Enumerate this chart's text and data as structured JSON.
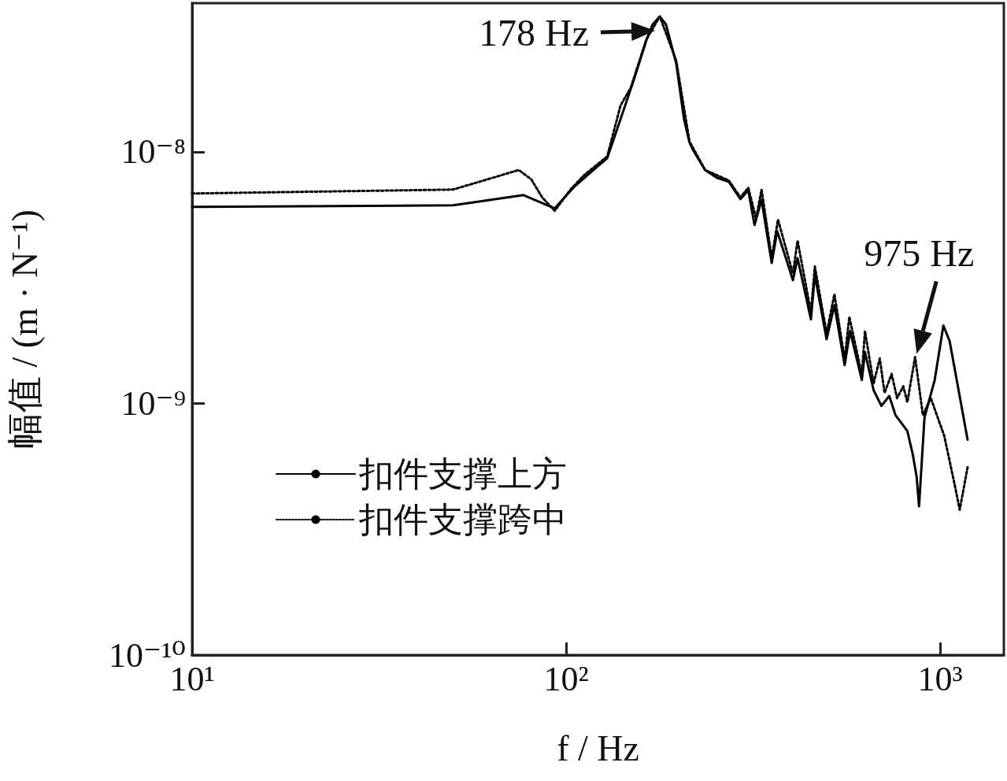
{
  "chart_data": {
    "type": "line",
    "xlabel": "f / Hz",
    "ylabel": "幅值 / (m · N⁻¹)",
    "log": "xy",
    "xlim": [
      10,
      1480
    ],
    "ylim": [
      1e-10,
      3.9e-08
    ],
    "xticks": [
      {
        "value": 10,
        "label": "10¹"
      },
      {
        "value": 100,
        "label": "10²"
      },
      {
        "value": 1000,
        "label": "10³"
      }
    ],
    "yticks": [
      {
        "value": 1e-10,
        "label": "10⁻¹⁰"
      },
      {
        "value": 1e-09,
        "label": "10⁻⁹"
      },
      {
        "value": 1e-08,
        "label": "10⁻⁸"
      }
    ],
    "grid": false,
    "legend": "bottom left",
    "marker": "none",
    "annotations": [
      {
        "text": "178 Hz",
        "x": 178,
        "y": 3.45e-08
      },
      {
        "text": "975 Hz",
        "x": 857,
        "y": 1.53e-09
      }
    ],
    "series": [
      {
        "name": "扣件支撑上方",
        "color": "#000000",
        "line_style": "solid",
        "x": [
          10,
          49.8,
          76.9,
          93.2,
          104.7,
          117,
          128.8,
          139.8,
          152.5,
          163.9,
          170.3,
          178,
          184.9,
          197,
          206.6,
          213.7,
          219,
          235.3,
          253,
          272,
          292.4,
          306.9,
          318.9,
          333,
          354.5,
          366.7,
          403.9,
          415.7,
          451.3,
          462.3,
          497,
          521.5,
          555.4,
          574.3,
          617.4,
          629.4,
          663.7,
          696.5,
          731,
          759.7,
          817,
          845,
          865,
          878,
          908,
          967,
          1020,
          1060,
          1184
        ],
        "values": [
          6.04e-09,
          6.13e-09,
          6.73e-09,
          5.96e-09,
          7.23e-09,
          8.35e-09,
          9.44e-09,
          1.35e-08,
          1.98e-08,
          2.78e-08,
          3.21e-08,
          3.45e-08,
          3.21e-08,
          2.24e-08,
          1.35e-08,
          1.09e-08,
          1.01e-08,
          8.47e-09,
          7.89e-09,
          7.61e-09,
          6.49e-09,
          7.03e-09,
          5.12e-09,
          6.45e-09,
          3.62e-09,
          4.84e-09,
          3.09e-09,
          3.78e-09,
          2.16e-09,
          3.25e-09,
          1.8e-09,
          2.46e-09,
          1.42e-09,
          1.94e-09,
          1.24e-09,
          1.6e-09,
          1.13e-09,
          9.78e-10,
          1.07e-09,
          8.98e-10,
          7.77e-10,
          6.26e-10,
          5.12e-10,
          3.9e-10,
          8.79e-10,
          1.24e-09,
          2.04e-09,
          1.77e-09,
          7.18e-10
        ]
      },
      {
        "name": "扣件支撑跨中",
        "color": "#000000",
        "line_style": "dotted",
        "x": [
          10,
          49.8,
          58.7,
          74.7,
          80.7,
          86.3,
          93.2,
          102.7,
          111.5,
          128.8,
          139.8,
          148.9,
          163.9,
          178,
          197,
          213.7,
          235.3,
          272,
          292.4,
          306.9,
          322,
          333,
          354.5,
          368.5,
          403.9,
          415.7,
          451.3,
          462.3,
          497,
          521.5,
          555.4,
          571.6,
          617.4,
          629.4,
          663.7,
          689.7,
          710,
          741.6,
          767,
          797,
          817,
          857,
          899,
          944,
          1025,
          1091,
          1128,
          1184
        ],
        "values": [
          6.83e-09,
          7.08e-09,
          7.61e-09,
          8.47e-09,
          7.77e-09,
          6.59e-09,
          5.83e-09,
          7.08e-09,
          8.06e-09,
          9.6e-09,
          1.53e-08,
          1.8e-08,
          2.8e-08,
          3.45e-08,
          2.3e-08,
          1.1e-08,
          8.47e-09,
          7.7e-09,
          6.6e-09,
          7.2e-09,
          5.43e-09,
          7.08e-09,
          3.78e-09,
          5.38e-09,
          3.28e-09,
          4.44e-09,
          2.3e-09,
          3.5e-09,
          1.9e-09,
          2.72e-09,
          1.5e-09,
          2.21e-09,
          1.3e-09,
          1.94e-09,
          1.2e-09,
          1.51e-09,
          1.1e-09,
          1.31e-09,
          1.05e-09,
          1.17e-09,
          1.01e-09,
          1.53e-09,
          8.98e-10,
          1.05e-09,
          7.45e-10,
          4.83e-10,
          3.78e-10,
          5.58e-10
        ]
      }
    ]
  }
}
